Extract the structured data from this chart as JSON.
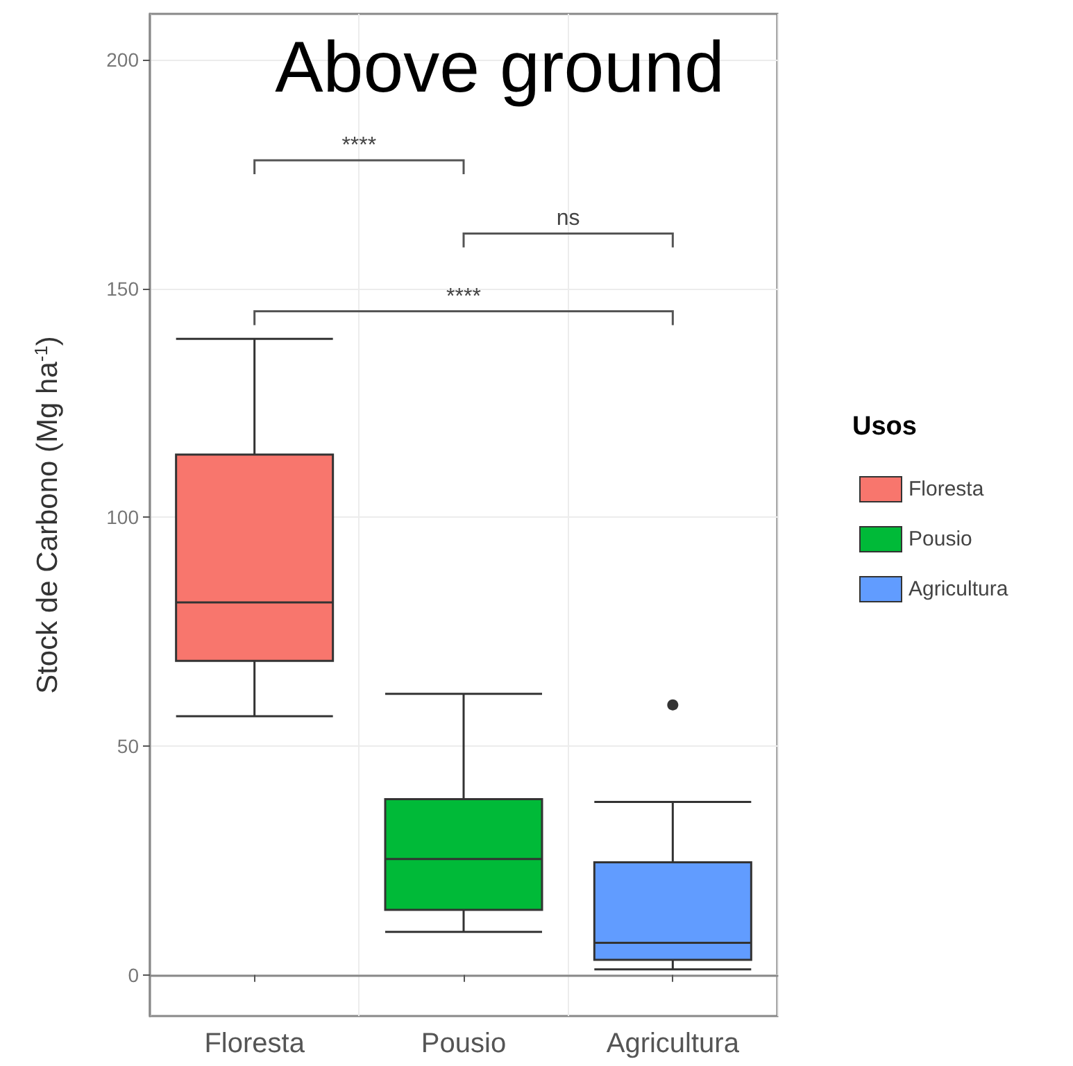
{
  "chart_data": {
    "type": "box",
    "title": "Above ground",
    "ylabel": "Stock de Carbono (Mg ha$^{-1}$)",
    "legend_title": "Usos",
    "categories": [
      "Floresta",
      "Pousio",
      "Agricultura"
    ],
    "series": [
      {
        "name": "Floresta",
        "color": "#f8766d",
        "boxes": [
          {
            "low": 56.5,
            "q1": 68.6,
            "median": 81.4,
            "q3": 113.7,
            "high": 139
          },
          null,
          null
        ]
      },
      {
        "name": "Pousio",
        "color": "#00ba38",
        "boxes": [
          null,
          {
            "low": 9.4,
            "q1": 14.2,
            "median": 25.3,
            "q3": 38.4,
            "high": 61.4
          },
          null
        ]
      },
      {
        "name": "Agricultura",
        "color": "#619cff",
        "boxes": [
          null,
          null,
          {
            "low": 1.2,
            "q1": 3.3,
            "median": 7,
            "q3": 24.6,
            "high": 37.8,
            "outliers": [
              59
            ]
          }
        ]
      }
    ],
    "annotations": [
      "****",
      "ns",
      "****"
    ],
    "ylim": [
      -9,
      210
    ],
    "yticks": [
      0,
      50,
      100,
      150,
      200
    ],
    "grid": true,
    "legend": "right"
  }
}
